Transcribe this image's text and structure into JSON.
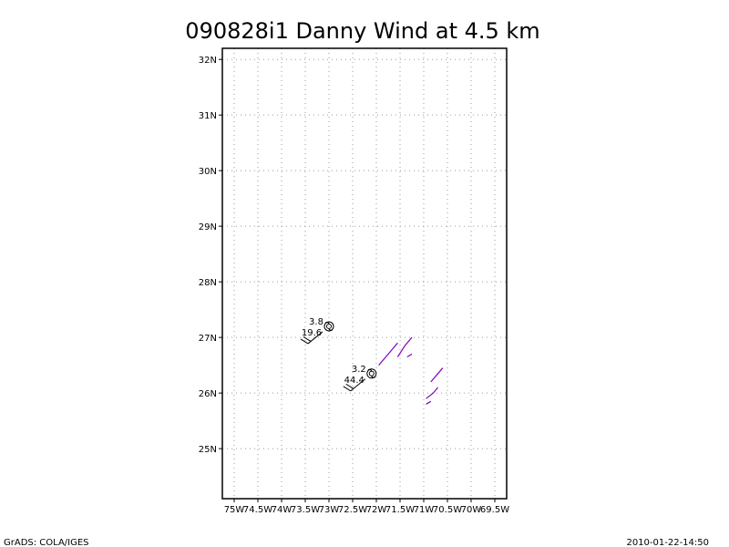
{
  "title": "090828i1 Danny Wind at 4.5 km",
  "footer": {
    "left": "GrADS: COLA/IGES",
    "right": "2010-01-22-14:50"
  },
  "map": {
    "lon_range": [
      -75.25,
      -69.25
    ],
    "lat_range": [
      24.1,
      32.2
    ],
    "grid": true,
    "lat_ticks": [
      {
        "value": 25,
        "label": "25N"
      },
      {
        "value": 26,
        "label": "26N"
      },
      {
        "value": 27,
        "label": "27N"
      },
      {
        "value": 28,
        "label": "28N"
      },
      {
        "value": 29,
        "label": "29N"
      },
      {
        "value": 30,
        "label": "30N"
      },
      {
        "value": 31,
        "label": "31N"
      },
      {
        "value": 32,
        "label": "32N"
      }
    ],
    "lon_ticks": [
      {
        "value": -75.0,
        "label": "75W"
      },
      {
        "value": -74.5,
        "label": "74.5W"
      },
      {
        "value": -74.0,
        "label": "74W"
      },
      {
        "value": -73.5,
        "label": "73.5W"
      },
      {
        "value": -73.0,
        "label": "73W"
      },
      {
        "value": -72.5,
        "label": "72.5W"
      },
      {
        "value": -72.0,
        "label": "72W"
      },
      {
        "value": -71.5,
        "label": "71.5W"
      },
      {
        "value": -71.0,
        "label": "71W"
      },
      {
        "value": -70.5,
        "label": "70.5W"
      },
      {
        "value": -70.0,
        "label": "70W"
      },
      {
        "value": -69.5,
        "label": "69.5W"
      }
    ]
  },
  "storm_centers": [
    {
      "name": "hurricane-symbol-1",
      "lon": -73.0,
      "lat": 27.2,
      "label_top": "3.8",
      "label_bottom": "19.6",
      "barb_dir": 225
    },
    {
      "name": "hurricane-symbol-2",
      "lon": -72.1,
      "lat": 26.35,
      "label_top": "3.2",
      "label_bottom": "44.4",
      "barb_dir": 225
    }
  ],
  "wind_tracks": [
    {
      "color": "#8000c0",
      "points": [
        [
          -71.95,
          26.5
        ],
        [
          -71.7,
          26.75
        ],
        [
          -71.55,
          26.9
        ]
      ]
    },
    {
      "color": "#8000c0",
      "points": [
        [
          -71.55,
          26.65
        ],
        [
          -71.4,
          26.85
        ],
        [
          -71.25,
          27.0
        ]
      ]
    },
    {
      "color": "#8000c0",
      "points": [
        [
          -71.35,
          26.65
        ],
        [
          -71.25,
          26.7
        ]
      ]
    },
    {
      "color": "#8000c0",
      "points": [
        [
          -70.95,
          25.9
        ],
        [
          -70.8,
          26.0
        ],
        [
          -70.7,
          26.1
        ]
      ]
    },
    {
      "color": "#8000c0",
      "points": [
        [
          -70.85,
          26.2
        ],
        [
          -70.7,
          26.35
        ],
        [
          -70.6,
          26.45
        ]
      ]
    },
    {
      "color": "#8000c0",
      "points": [
        [
          -70.95,
          25.8
        ],
        [
          -70.85,
          25.85
        ]
      ]
    }
  ]
}
